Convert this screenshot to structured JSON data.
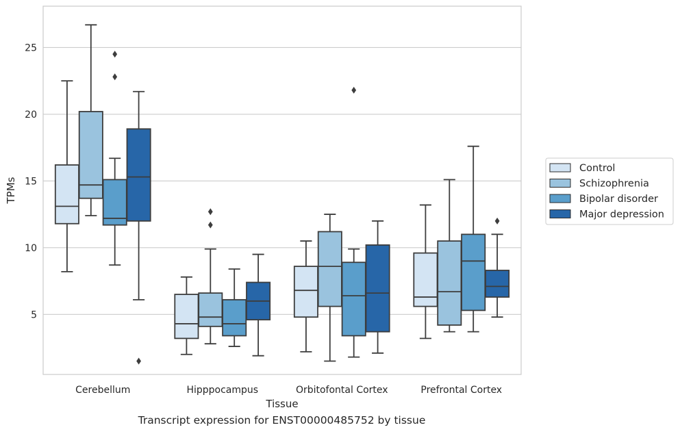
{
  "caption": "Transcript expression for ENST00000485752 by tissue",
  "chart_data": {
    "type": "box",
    "title": "",
    "xlabel": "Tissue",
    "ylabel": "TPMs",
    "ylim": [
      0.5,
      28.1
    ],
    "yticks": [
      5,
      10,
      15,
      20,
      25
    ],
    "grid": "horizontal",
    "legend_position": "right",
    "categories": [
      "Cerebellum",
      "Hipppocampus",
      "Orbitofontal Cortex",
      "Prefrontal Cortex"
    ],
    "series": [
      {
        "name": "Control",
        "color": "#d3e4f3",
        "boxes": [
          {
            "whisker_low": 8.2,
            "q1": 11.8,
            "median": 13.1,
            "q3": 16.2,
            "whisker_high": 22.5,
            "outliers": []
          },
          {
            "whisker_low": 2.0,
            "q1": 3.2,
            "median": 4.3,
            "q3": 6.5,
            "whisker_high": 7.8,
            "outliers": []
          },
          {
            "whisker_low": 2.2,
            "q1": 4.8,
            "median": 6.8,
            "q3": 8.6,
            "whisker_high": 10.5,
            "outliers": []
          },
          {
            "whisker_low": 3.2,
            "q1": 5.6,
            "median": 6.3,
            "q3": 9.6,
            "whisker_high": 13.2,
            "outliers": []
          }
        ]
      },
      {
        "name": "Schizophrenia",
        "color": "#9ac3de",
        "boxes": [
          {
            "whisker_low": 12.4,
            "q1": 13.7,
            "median": 14.7,
            "q3": 20.2,
            "whisker_high": 26.7,
            "outliers": []
          },
          {
            "whisker_low": 2.8,
            "q1": 4.1,
            "median": 4.8,
            "q3": 6.6,
            "whisker_high": 9.9,
            "outliers": [
              11.7,
              12.7
            ]
          },
          {
            "whisker_low": 1.5,
            "q1": 5.6,
            "median": 8.6,
            "q3": 11.2,
            "whisker_high": 12.5,
            "outliers": []
          },
          {
            "whisker_low": 3.7,
            "q1": 4.2,
            "median": 6.7,
            "q3": 10.5,
            "whisker_high": 15.1,
            "outliers": []
          }
        ]
      },
      {
        "name": "Bipolar disorder",
        "color": "#5a9ecb",
        "boxes": [
          {
            "whisker_low": 8.7,
            "q1": 11.7,
            "median": 12.2,
            "q3": 15.1,
            "whisker_high": 16.7,
            "outliers": [
              22.8,
              24.5
            ]
          },
          {
            "whisker_low": 2.6,
            "q1": 3.4,
            "median": 4.3,
            "q3": 6.1,
            "whisker_high": 8.4,
            "outliers": []
          },
          {
            "whisker_low": 1.8,
            "q1": 3.4,
            "median": 6.4,
            "q3": 8.9,
            "whisker_high": 9.9,
            "outliers": [
              21.8
            ]
          },
          {
            "whisker_low": 3.7,
            "q1": 5.3,
            "median": 9.0,
            "q3": 11.0,
            "whisker_high": 17.6,
            "outliers": []
          }
        ]
      },
      {
        "name": "Major depression",
        "color": "#2766a8",
        "boxes": [
          {
            "whisker_low": 6.1,
            "q1": 12.0,
            "median": 15.3,
            "q3": 18.9,
            "whisker_high": 21.7,
            "outliers": [
              1.5
            ]
          },
          {
            "whisker_low": 1.9,
            "q1": 4.6,
            "median": 6.0,
            "q3": 7.4,
            "whisker_high": 9.5,
            "outliers": []
          },
          {
            "whisker_low": 2.1,
            "q1": 3.7,
            "median": 6.6,
            "q3": 10.2,
            "whisker_high": 12.0,
            "outliers": []
          },
          {
            "whisker_low": 4.8,
            "q1": 6.3,
            "median": 7.1,
            "q3": 8.3,
            "whisker_high": 11.0,
            "outliers": [
              12.0
            ]
          }
        ]
      }
    ]
  }
}
